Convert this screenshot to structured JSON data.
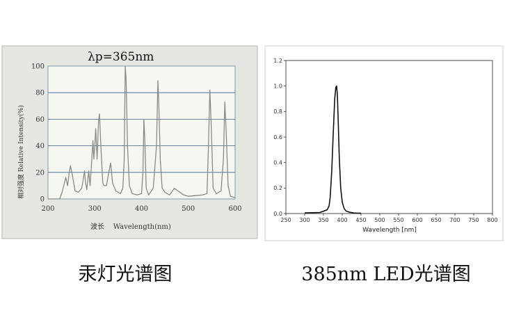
{
  "captions": {
    "left": "汞灯光谱图",
    "right": "385nm LED光谱图"
  },
  "colors": {
    "left_panel_bg": "#e6e6e2",
    "left_grid": "#3d5f86",
    "left_curve": "#8a8a8a",
    "right_curve": "#111111"
  },
  "chart_data": [
    {
      "type": "line",
      "annotation": "λp=365nm",
      "xlabel": "波长    Wavelength(nm)",
      "ylabel": "相对强度    Relative Intensity(%)",
      "xlim": [
        200,
        600
      ],
      "ylim": [
        0,
        100
      ],
      "x_ticks": [
        "200",
        "300",
        "400",
        "500",
        "600"
      ],
      "y_ticks": [
        "0",
        "20",
        "40",
        "60",
        "80",
        "100"
      ],
      "grid": true,
      "x": [
        200,
        225,
        230,
        238,
        242,
        245,
        248,
        252,
        258,
        265,
        272,
        275,
        278,
        280,
        283,
        287,
        290,
        293,
        296,
        298,
        300,
        302,
        305,
        308,
        310,
        313,
        317,
        320,
        325,
        330,
        334,
        338,
        345,
        355,
        360,
        363,
        365,
        367,
        370,
        374,
        380,
        390,
        400,
        403,
        405,
        407,
        410,
        415,
        425,
        432,
        435,
        437,
        440,
        444,
        450,
        460,
        470,
        490,
        500,
        530,
        540,
        543,
        546,
        549,
        553,
        560,
        570,
        575,
        578,
        581,
        585,
        590,
        600
      ],
      "y": [
        0,
        0,
        5,
        16,
        10,
        19,
        25,
        18,
        6,
        5,
        8,
        14,
        21,
        13,
        7,
        21,
        10,
        26,
        44,
        30,
        40,
        53,
        30,
        58,
        64,
        40,
        12,
        10,
        10,
        20,
        27,
        12,
        6,
        4,
        8,
        30,
        100,
        90,
        40,
        10,
        4,
        3,
        4,
        20,
        60,
        45,
        8,
        3,
        8,
        40,
        89,
        70,
        30,
        8,
        5,
        3,
        8,
        3,
        2,
        3,
        4,
        40,
        82,
        55,
        8,
        4,
        6,
        30,
        73,
        50,
        10,
        2,
        1
      ]
    },
    {
      "type": "line",
      "xlabel": "Wavelength [nm]",
      "ylabel": "",
      "xlim": [
        250,
        800
      ],
      "ylim": [
        0,
        1.2
      ],
      "x_ticks": [
        "250",
        "300",
        "350",
        "400",
        "450",
        "500",
        "550",
        "600",
        "650",
        "700",
        "750",
        "800"
      ],
      "y_ticks": [
        "0.0",
        "0.2",
        "0.4",
        "0.6",
        "0.8",
        "1.0",
        "1.2"
      ],
      "grid": false,
      "x": [
        300,
        340,
        350,
        356,
        360,
        365,
        368,
        372,
        376,
        380,
        383,
        385,
        387,
        389,
        392,
        396,
        400,
        405,
        410,
        420,
        430,
        440,
        450
      ],
      "y": [
        0.005,
        0.008,
        0.018,
        0.025,
        0.03,
        0.06,
        0.13,
        0.33,
        0.62,
        0.9,
        0.99,
        1.0,
        0.93,
        0.75,
        0.45,
        0.2,
        0.09,
        0.04,
        0.02,
        0.01,
        0.005,
        0.003,
        0.002
      ]
    }
  ]
}
